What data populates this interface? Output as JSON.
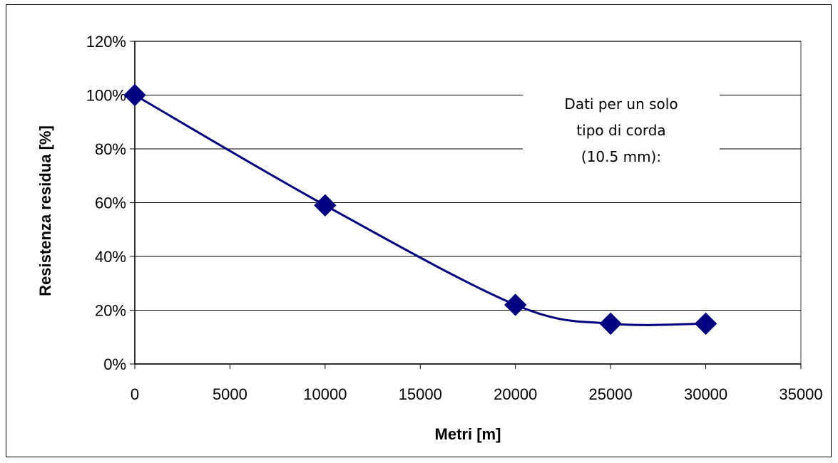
{
  "chart_data": {
    "type": "line",
    "title": "",
    "xlabel": "Metri [m]",
    "ylabel": "Resistenza residua [%]",
    "xlim": [
      0,
      35000
    ],
    "ylim": [
      0,
      120
    ],
    "x_ticks": [
      0,
      5000,
      10000,
      15000,
      20000,
      25000,
      30000,
      35000
    ],
    "x_tick_labels": [
      "0",
      "5000",
      "10000",
      "15000",
      "20000",
      "25000",
      "30000",
      "35000"
    ],
    "y_ticks": [
      0,
      20,
      40,
      60,
      80,
      100,
      120
    ],
    "y_tick_labels": [
      "0%",
      "20%",
      "40%",
      "60%",
      "80%",
      "100%",
      "120%"
    ],
    "grid": "horizontal",
    "legend": "none",
    "series": [
      {
        "x": [
          0,
          10000,
          20000,
          25000,
          30000
        ],
        "y": [
          100,
          59,
          22,
          15,
          15
        ],
        "color": "#000080",
        "marker": "diamond",
        "smooth": true
      }
    ],
    "annotation": {
      "lines": [
        "Dati per un solo",
        "tipo di corda",
        "(10.5 mm):"
      ]
    }
  }
}
